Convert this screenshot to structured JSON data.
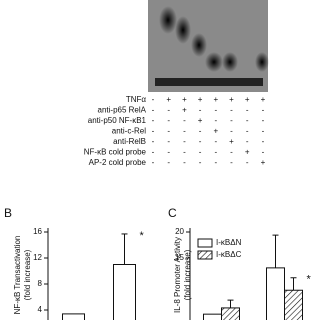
{
  "gel": {
    "rows": [
      {
        "label": "TNFα",
        "marks": [
          "-",
          "+",
          "+",
          "+",
          "+",
          "+",
          "+",
          "+"
        ]
      },
      {
        "label": "anti-p65 RelA",
        "marks": [
          "-",
          "-",
          "+",
          "-",
          "-",
          "-",
          "-",
          "-"
        ]
      },
      {
        "label": "anti-p50 NF-κB1",
        "marks": [
          "-",
          "-",
          "-",
          "+",
          "-",
          "-",
          "-",
          "-"
        ]
      },
      {
        "label": "anti-c-Rel",
        "marks": [
          "-",
          "-",
          "-",
          "-",
          "+",
          "-",
          "-",
          "-"
        ]
      },
      {
        "label": "anti-RelB",
        "marks": [
          "-",
          "-",
          "-",
          "-",
          "-",
          "+",
          "-",
          "-"
        ]
      },
      {
        "label": "NF-κB cold probe",
        "marks": [
          "-",
          "-",
          "-",
          "-",
          "-",
          "-",
          "+",
          "-"
        ]
      },
      {
        "label": "AP-2 cold probe",
        "marks": [
          "-",
          "-",
          "-",
          "-",
          "-",
          "-",
          "-",
          "+"
        ]
      }
    ]
  },
  "chart_data": [
    {
      "type": "bar",
      "panel": "B",
      "ylabel": [
        "NF-κB Transactivation",
        "(fold increase)"
      ],
      "categories": [
        null,
        null
      ],
      "series": [
        {
          "color": "#ffffff",
          "values": [
            3.4,
            11
          ],
          "errors": [
            0,
            4.7
          ]
        }
      ],
      "ylim": [
        0,
        16
      ],
      "yticks": [
        4,
        8,
        12,
        16
      ],
      "annotations": [
        {
          "text": "*",
          "series": 0,
          "index": 1
        }
      ]
    },
    {
      "type": "bar",
      "panel": "C",
      "ylabel": [
        "IL-8 Promoter Activity",
        "(fold increase)"
      ],
      "categories": [
        null,
        null
      ],
      "series": [
        {
          "name": "I-κBΔN",
          "color": "#ffffff",
          "hatch": false,
          "values": [
            4.2,
            13.1
          ],
          "errors": [
            0,
            6.3
          ]
        },
        {
          "name": "I-κBΔC",
          "color": "#ffffff",
          "hatch": true,
          "values": [
            5.4,
            8.8
          ],
          "errors": [
            1.5,
            2.4
          ]
        }
      ],
      "ylim": [
        0,
        20
      ],
      "yticks": [
        15,
        20
      ],
      "annotations": [
        {
          "text": "*",
          "series": 1,
          "index": 1
        }
      ]
    }
  ]
}
